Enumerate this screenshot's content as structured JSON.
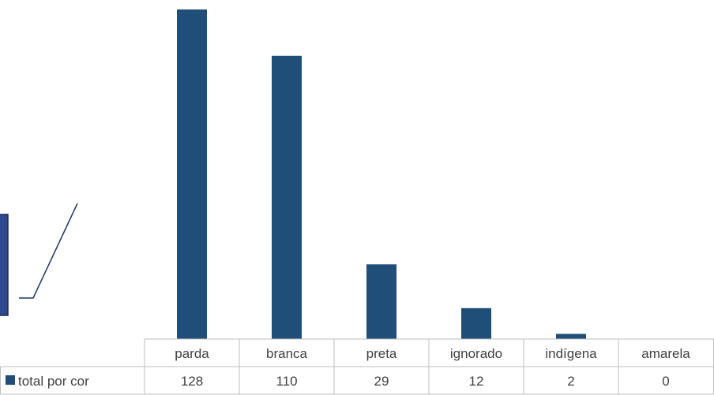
{
  "chart_data": {
    "type": "bar",
    "categories": [
      "parda",
      "branca",
      "preta",
      "ignorado",
      "indígena",
      "amarela"
    ],
    "series": [
      {
        "name": "total por cor",
        "values": [
          128,
          110,
          29,
          12,
          2,
          0
        ]
      }
    ],
    "title": "",
    "xlabel": "",
    "ylabel": "",
    "ylim": [
      0,
      128
    ],
    "grid": false,
    "legend": "data-table",
    "colors": {
      "bar": "#1F4E79",
      "grid": "#BFBFBF",
      "text": "#404040",
      "side_box": "#2E4A8C"
    }
  }
}
